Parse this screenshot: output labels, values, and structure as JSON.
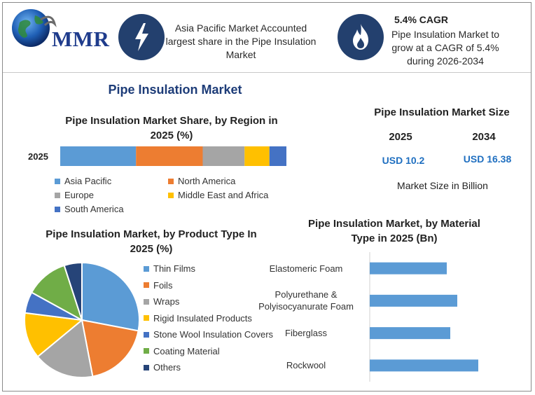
{
  "header": {
    "logo_text": "MMR",
    "headline_text": "Asia Pacific Market Accounted largest share in the Pipe Insulation Market",
    "cagr_title": "5.4% CAGR",
    "cagr_text": "Pipe Insulation Market to grow at a CAGR of 5.4% during 2026-2034",
    "icon_1": "lightning-bolt-icon",
    "icon_2": "flame-icon"
  },
  "main_title": "Pipe Insulation Market",
  "market_size": {
    "title": "Pipe Insulation Market Size",
    "year_1": "2025",
    "year_2": "2034",
    "value_1": "USD 10.2",
    "value_2": "USD 16.38",
    "unit_note": "Market Size in Billion"
  },
  "colors": {
    "navy": "#23406e",
    "value_blue": "#1f6fc0",
    "asia_pacific": "#5b9bd5",
    "north_america": "#ed7d31",
    "europe": "#a5a5a5",
    "middle_east_africa": "#ffc000",
    "south_america": "#4472c4",
    "coating_material": "#70ad47",
    "others": "#264478"
  },
  "chart_data": [
    {
      "type": "bar",
      "orientation": "horizontal-stacked",
      "title": "Pipe Insulation Market Share, by Region in 2025 (%)",
      "categories": [
        "2025"
      ],
      "series": [
        {
          "name": "Asia Pacific",
          "values": [
            33.5
          ],
          "color": "#5b9bd5"
        },
        {
          "name": "North America",
          "values": [
            29.5
          ],
          "color": "#ed7d31"
        },
        {
          "name": "Europe",
          "values": [
            18.5
          ],
          "color": "#a5a5a5"
        },
        {
          "name": "Middle East and Africa",
          "values": [
            11
          ],
          "color": "#ffc000"
        },
        {
          "name": "South America",
          "values": [
            7.5
          ],
          "color": "#4472c4"
        }
      ],
      "legend": "bottom"
    },
    {
      "type": "pie",
      "title": "Pipe Insulation Market, by Product Type In 2025 (%)",
      "labels": [
        "Thin Films",
        "Foils",
        "Wraps",
        "Rigid Insulated Products",
        "Stone Wool Insulation Covers",
        "Coating Material",
        "Others"
      ],
      "values": [
        28,
        19,
        17,
        13,
        6,
        12,
        5
      ],
      "colors": [
        "#5b9bd5",
        "#ed7d31",
        "#a5a5a5",
        "#ffc000",
        "#4472c4",
        "#70ad47",
        "#264478"
      ],
      "legend": "right"
    },
    {
      "type": "bar",
      "orientation": "horizontal",
      "title": "Pipe Insulation Market, by Material Type in 2025 (Bn)",
      "categories": [
        "Elastomeric Foam",
        "Polyurethane & Polyisocyanurate Foam",
        "Fiberglass",
        "Rockwool"
      ],
      "category_lines": [
        [
          "Elastomeric Foam"
        ],
        [
          "Polyurethane &",
          "Polyisocyanurate Foam"
        ],
        [
          "Fiberglass"
        ],
        [
          "Rockwool"
        ]
      ],
      "values": [
        2.2,
        2.5,
        2.3,
        3.1
      ],
      "xlim": [
        0,
        4
      ],
      "color": "#5b9bd5",
      "grid": false
    }
  ]
}
